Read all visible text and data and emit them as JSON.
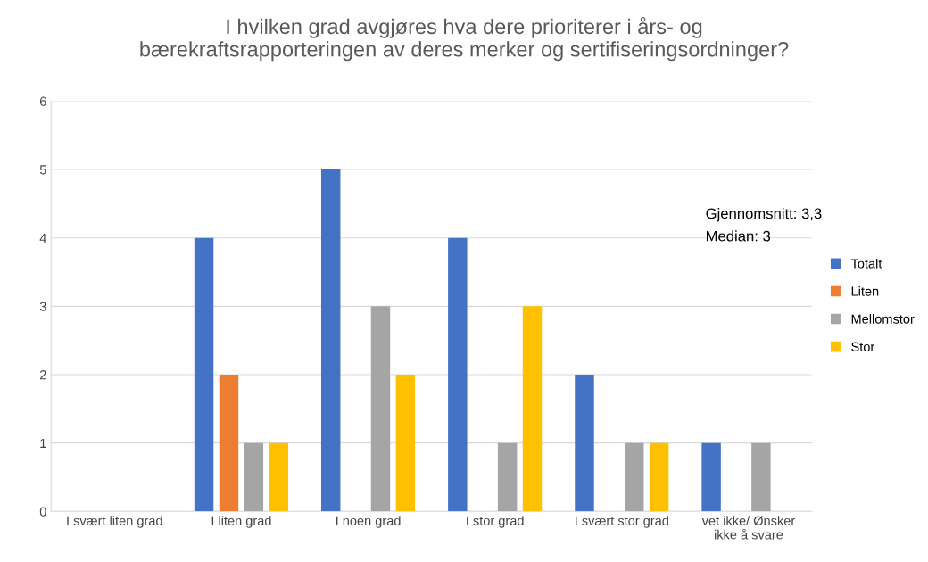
{
  "chart_data": {
    "type": "bar",
    "title": "I hvilken grad avgjøres hva dere prioriterer i års- og\nbærekraftsrapporteringen av deres merker og sertifiseringsordninger?",
    "categories": [
      "I svært liten grad",
      "I liten grad",
      "I noen grad",
      "I stor grad",
      "I svært stor grad",
      "vet ikke/ Ønsker\nikke å svare"
    ],
    "series": [
      {
        "name": "Totalt",
        "color": "#4472c4",
        "values": [
          0,
          4,
          5,
          4,
          2,
          1
        ]
      },
      {
        "name": "Liten",
        "color": "#ed7d31",
        "values": [
          0,
          2,
          0,
          0,
          0,
          0
        ]
      },
      {
        "name": "Mellomstor",
        "color": "#a5a5a5",
        "values": [
          0,
          1,
          3,
          1,
          1,
          1
        ]
      },
      {
        "name": "Stor",
        "color": "#ffc000",
        "values": [
          0,
          1,
          2,
          3,
          1,
          0
        ]
      }
    ],
    "ylim": [
      0,
      6
    ],
    "yticks": [
      0,
      1,
      2,
      3,
      4,
      5,
      6
    ],
    "grid": "y",
    "legend": "right",
    "annotations": [
      "Gjennomsnitt: 3,3",
      "Median: 3"
    ]
  }
}
